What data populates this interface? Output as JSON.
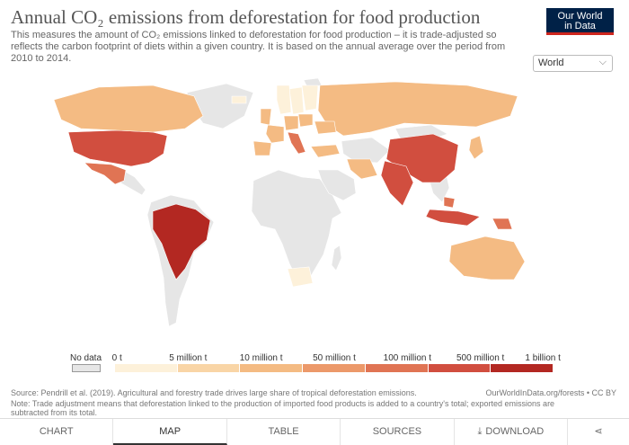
{
  "header": {
    "title": "Annual CO₂ emissions from deforestation for food production",
    "subtitle": "This measures the amount of CO₂ emissions linked to deforestation for food production – it is trade-adjusted so reflects the carbon footprint of diets within a given country. It is based on the annual average over the period from 2010 to 2014.",
    "logo_line1": "Our World",
    "logo_line2": "in Data"
  },
  "entity_selector": {
    "value": "World",
    "icon": "chevron-down-icon"
  },
  "legend": {
    "no_data_label": "No data",
    "ticks": [
      "0 t",
      "5 million t",
      "10 million t",
      "50 million t",
      "100 million t",
      "500 million t",
      "1 billion t"
    ],
    "colors": [
      "#fdf1da",
      "#f9d5a6",
      "#f4bb83",
      "#ec996a",
      "#e07454",
      "#d14e3f",
      "#b32822"
    ],
    "no_data_color": "#e6e6e6"
  },
  "map_data": {
    "type": "choropleth",
    "metric": "Annual CO₂ emissions from deforestation for food production (tonnes)",
    "categories": {
      "Brazil": 6,
      "Indonesia": 5,
      "China": 5,
      "India": 5,
      "United States": 5,
      "Malaysia": 4,
      "Papua New Guinea": 4,
      "Mexico": 4,
      "Italy": 4,
      "Canada": 2,
      "Russia": 2,
      "Australia": 2,
      "Japan": 2,
      "Turkey": 2,
      "Iran": 2,
      "Germany": 2,
      "France": 2,
      "Spain": 2,
      "United Kingdom": 2,
      "Poland": 2,
      "Ukraine": 2,
      "Finland": 0,
      "Sweden": 0,
      "Norway": 0,
      "South Africa": 0,
      "Iceland": 0
    }
  },
  "footer": {
    "source": "Source: Pendrill et al. (2019). Agricultural and forestry trade drives large share of tropical deforestation emissions.",
    "credit": "OurWorldInData.org/forests • CC BY",
    "note": "Note: Trade adjustment means that deforestation linked to the production of imported food products is added to a country's total; exported emissions are subtracted from its total."
  },
  "tabs": [
    {
      "label": "CHART",
      "active": false
    },
    {
      "label": "MAP",
      "active": true
    },
    {
      "label": "TABLE",
      "active": false
    },
    {
      "label": "SOURCES",
      "active": false
    },
    {
      "label": "DOWNLOAD",
      "active": false,
      "icon": "download-icon"
    }
  ],
  "share_icon": "share-icon"
}
